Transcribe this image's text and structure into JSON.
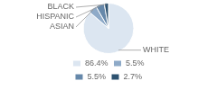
{
  "chart_data": {
    "type": "pie",
    "categories": [
      "WHITE",
      "ASIAN",
      "HISPANIC",
      "BLACK"
    ],
    "values": [
      86.4,
      5.5,
      5.5,
      2.7
    ],
    "value_labels": [
      "86.4%",
      "5.5%",
      "5.5%",
      "2.7%"
    ],
    "colors": [
      "#dce6f1",
      "#8eaac8",
      "#6688aa",
      "#2d5270"
    ],
    "legend": "bottom"
  }
}
